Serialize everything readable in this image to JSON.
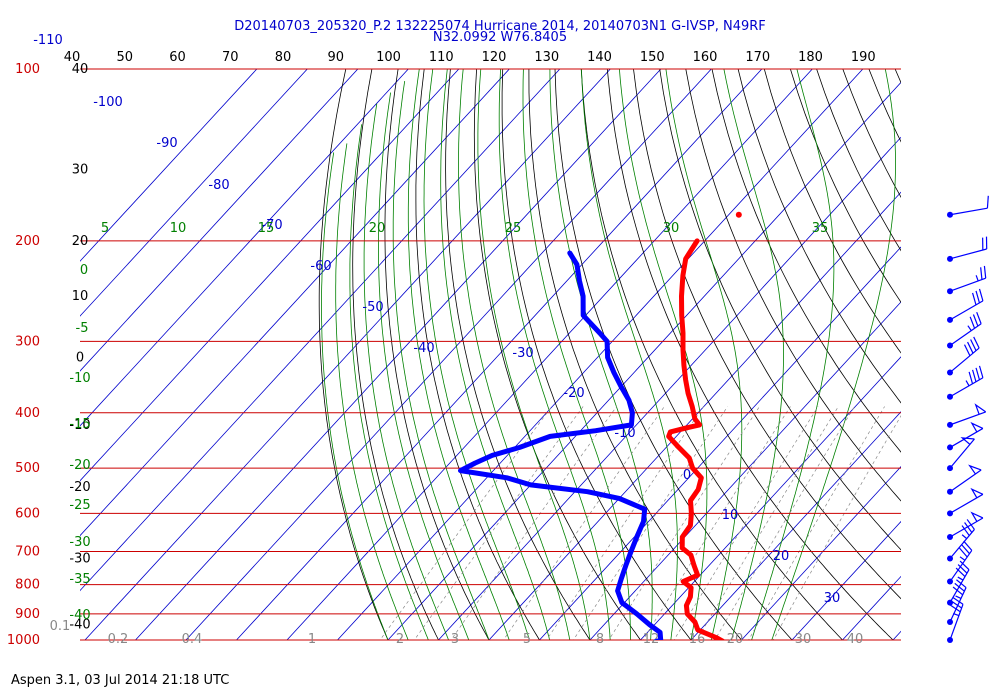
{
  "header": {
    "title": "D20140703_205320_P.2 132225074 Hurricane 2014, 20140703N1 G-IVSP, N49RF",
    "subtitle": "N32.0992 W76.8405"
  },
  "footer": {
    "text": "Aspen 3.1, 03 Jul 2014  21:18 UTC"
  },
  "colors": {
    "isobar": "#cc0000",
    "isotherm": "#0000cc",
    "dry_adiabat": "#000000",
    "moist_adiabat": "#008000",
    "mixing_ratio": "#888888",
    "temperature": "#ff0000",
    "dewpoint": "#0000ff",
    "height_label": "#000000",
    "mixing_ratio_label": "#888888",
    "theta_e_label": "#008000",
    "barb": "#0000ff"
  },
  "chart_data": {
    "type": "skew-t",
    "pressure_ticks": [
      {
        "p": 100,
        "label": "100"
      },
      {
        "p": 200,
        "label": "200"
      },
      {
        "p": 300,
        "label": "300"
      },
      {
        "p": 400,
        "label": "400"
      },
      {
        "p": 500,
        "label": "500"
      },
      {
        "p": 600,
        "label": "600"
      },
      {
        "p": 700,
        "label": "700"
      },
      {
        "p": 800,
        "label": "800"
      },
      {
        "p": 900,
        "label": "900"
      },
      {
        "p": 1000,
        "label": "1000"
      }
    ],
    "top_ticks": [
      "40",
      "50",
      "60",
      "70",
      "80",
      "90",
      "100",
      "110",
      "120",
      "130",
      "140",
      "150",
      "160",
      "170",
      "180",
      "190"
    ],
    "height_labels": [
      {
        "p": 100,
        "label": "40"
      },
      {
        "p": 150,
        "label": "30"
      },
      {
        "p": 200,
        "label": "20"
      },
      {
        "p": 250,
        "label": "10"
      },
      {
        "p": 320,
        "label": "0"
      },
      {
        "p": 420,
        "label": "-10"
      },
      {
        "p": 540,
        "label": "-20"
      },
      {
        "p": 720,
        "label": "-30"
      },
      {
        "p": 940,
        "label": "-40"
      }
    ],
    "isotherm_labels": [
      "-110",
      "-100",
      "-90",
      "-80",
      "-70",
      "-60",
      "-50",
      "-40",
      "-30",
      "-20",
      "-10",
      "0",
      "10",
      "20",
      "30"
    ],
    "theta_e_left_labels": [
      "5",
      "10",
      "15",
      "20",
      "25",
      "30",
      "35",
      "0",
      "-5",
      "-10",
      "-15",
      "-20",
      "-25",
      "-30",
      "-35",
      "-40"
    ],
    "mixing_ratio_labels": [
      "0.1",
      "0.2",
      "0.4",
      "1",
      "2",
      "3",
      "5",
      "8",
      "12",
      "16",
      "20",
      "30",
      "40"
    ],
    "temperature_profile": [
      {
        "p": 200,
        "t": -51.5
      },
      {
        "p": 215,
        "t": -50.5
      },
      {
        "p": 230,
        "t": -48.0
      },
      {
        "p": 250,
        "t": -44.5
      },
      {
        "p": 270,
        "t": -41.0
      },
      {
        "p": 290,
        "t": -37.5
      },
      {
        "p": 310,
        "t": -34.5
      },
      {
        "p": 330,
        "t": -31.5
      },
      {
        "p": 350,
        "t": -28.5
      },
      {
        "p": 370,
        "t": -25.5
      },
      {
        "p": 390,
        "t": -22.3
      },
      {
        "p": 410,
        "t": -19.5
      },
      {
        "p": 420,
        "t": -17.5
      },
      {
        "p": 425,
        "t": -19.5
      },
      {
        "p": 432,
        "t": -22.0
      },
      {
        "p": 440,
        "t": -21.5
      },
      {
        "p": 460,
        "t": -17.5
      },
      {
        "p": 480,
        "t": -13.5
      },
      {
        "p": 500,
        "t": -11.0
      },
      {
        "p": 520,
        "t": -7.5
      },
      {
        "p": 545,
        "t": -6.0
      },
      {
        "p": 570,
        "t": -5.5
      },
      {
        "p": 600,
        "t": -3.0
      },
      {
        "p": 630,
        "t": -1.0
      },
      {
        "p": 660,
        "t": -0.5
      },
      {
        "p": 690,
        "t": 1.5
      },
      {
        "p": 710,
        "t": 4.5
      },
      {
        "p": 740,
        "t": 7.0
      },
      {
        "p": 770,
        "t": 9.5
      },
      {
        "p": 790,
        "t": 7.8
      },
      {
        "p": 810,
        "t": 10.5
      },
      {
        "p": 840,
        "t": 12.0
      },
      {
        "p": 870,
        "t": 12.8
      },
      {
        "p": 900,
        "t": 14.5
      },
      {
        "p": 930,
        "t": 17.5
      },
      {
        "p": 960,
        "t": 19.5
      },
      {
        "p": 990,
        "t": 24.5
      },
      {
        "p": 1005,
        "t": 26.5
      }
    ],
    "temperature_isolated_point": {
      "p": 180,
      "t": -48.0
    },
    "dewpoint_profile": [
      {
        "p": 210,
        "t": -74.5
      },
      {
        "p": 220,
        "t": -71.0
      },
      {
        "p": 235,
        "t": -67.5
      },
      {
        "p": 250,
        "t": -64.0
      },
      {
        "p": 270,
        "t": -60.5
      },
      {
        "p": 290,
        "t": -54.0
      },
      {
        "p": 300,
        "t": -51.0
      },
      {
        "p": 320,
        "t": -48.0
      },
      {
        "p": 340,
        "t": -44.0
      },
      {
        "p": 360,
        "t": -40.0
      },
      {
        "p": 380,
        "t": -36.0
      },
      {
        "p": 400,
        "t": -33.0
      },
      {
        "p": 420,
        "t": -31.0
      },
      {
        "p": 430,
        "t": -37.0
      },
      {
        "p": 440,
        "t": -45.0
      },
      {
        "p": 460,
        "t": -49.0
      },
      {
        "p": 475,
        "t": -53.0
      },
      {
        "p": 490,
        "t": -55.0
      },
      {
        "p": 505,
        "t": -56.5
      },
      {
        "p": 520,
        "t": -46.0
      },
      {
        "p": 535,
        "t": -40.0
      },
      {
        "p": 550,
        "t": -27.5
      },
      {
        "p": 565,
        "t": -20.0
      },
      {
        "p": 590,
        "t": -13.0
      },
      {
        "p": 620,
        "t": -11.0
      },
      {
        "p": 660,
        "t": -9.5
      },
      {
        "p": 700,
        "t": -8.0
      },
      {
        "p": 740,
        "t": -6.5
      },
      {
        "p": 780,
        "t": -5.0
      },
      {
        "p": 820,
        "t": -3.5
      },
      {
        "p": 860,
        "t": -0.5
      },
      {
        "p": 900,
        "t": 4.5
      },
      {
        "p": 940,
        "t": 9.0
      },
      {
        "p": 970,
        "t": 12.5
      },
      {
        "p": 1000,
        "t": 14.0
      },
      {
        "p": 1010,
        "t": 13.0
      }
    ],
    "wind_barbs": [
      {
        "p": 180,
        "dir": 80,
        "spd": 10
      },
      {
        "p": 215,
        "dir": 75,
        "spd": 20
      },
      {
        "p": 245,
        "dir": 70,
        "spd": 25
      },
      {
        "p": 275,
        "dir": 60,
        "spd": 30
      },
      {
        "p": 305,
        "dir": 55,
        "spd": 35
      },
      {
        "p": 340,
        "dir": 50,
        "spd": 40
      },
      {
        "p": 375,
        "dir": 60,
        "spd": 45
      },
      {
        "p": 420,
        "dir": 70,
        "spd": 50
      },
      {
        "p": 460,
        "dir": 60,
        "spd": 50
      },
      {
        "p": 500,
        "dir": 40,
        "spd": 50
      },
      {
        "p": 550,
        "dir": 55,
        "spd": 50
      },
      {
        "p": 600,
        "dir": 60,
        "spd": 50
      },
      {
        "p": 660,
        "dir": 60,
        "spd": 50
      },
      {
        "p": 720,
        "dir": 40,
        "spd": 35
      },
      {
        "p": 790,
        "dir": 35,
        "spd": 35
      },
      {
        "p": 860,
        "dir": 30,
        "spd": 35
      },
      {
        "p": 930,
        "dir": 25,
        "spd": 35
      },
      {
        "p": 1000,
        "dir": 20,
        "spd": 35
      }
    ],
    "grid": true,
    "legend": "none"
  }
}
